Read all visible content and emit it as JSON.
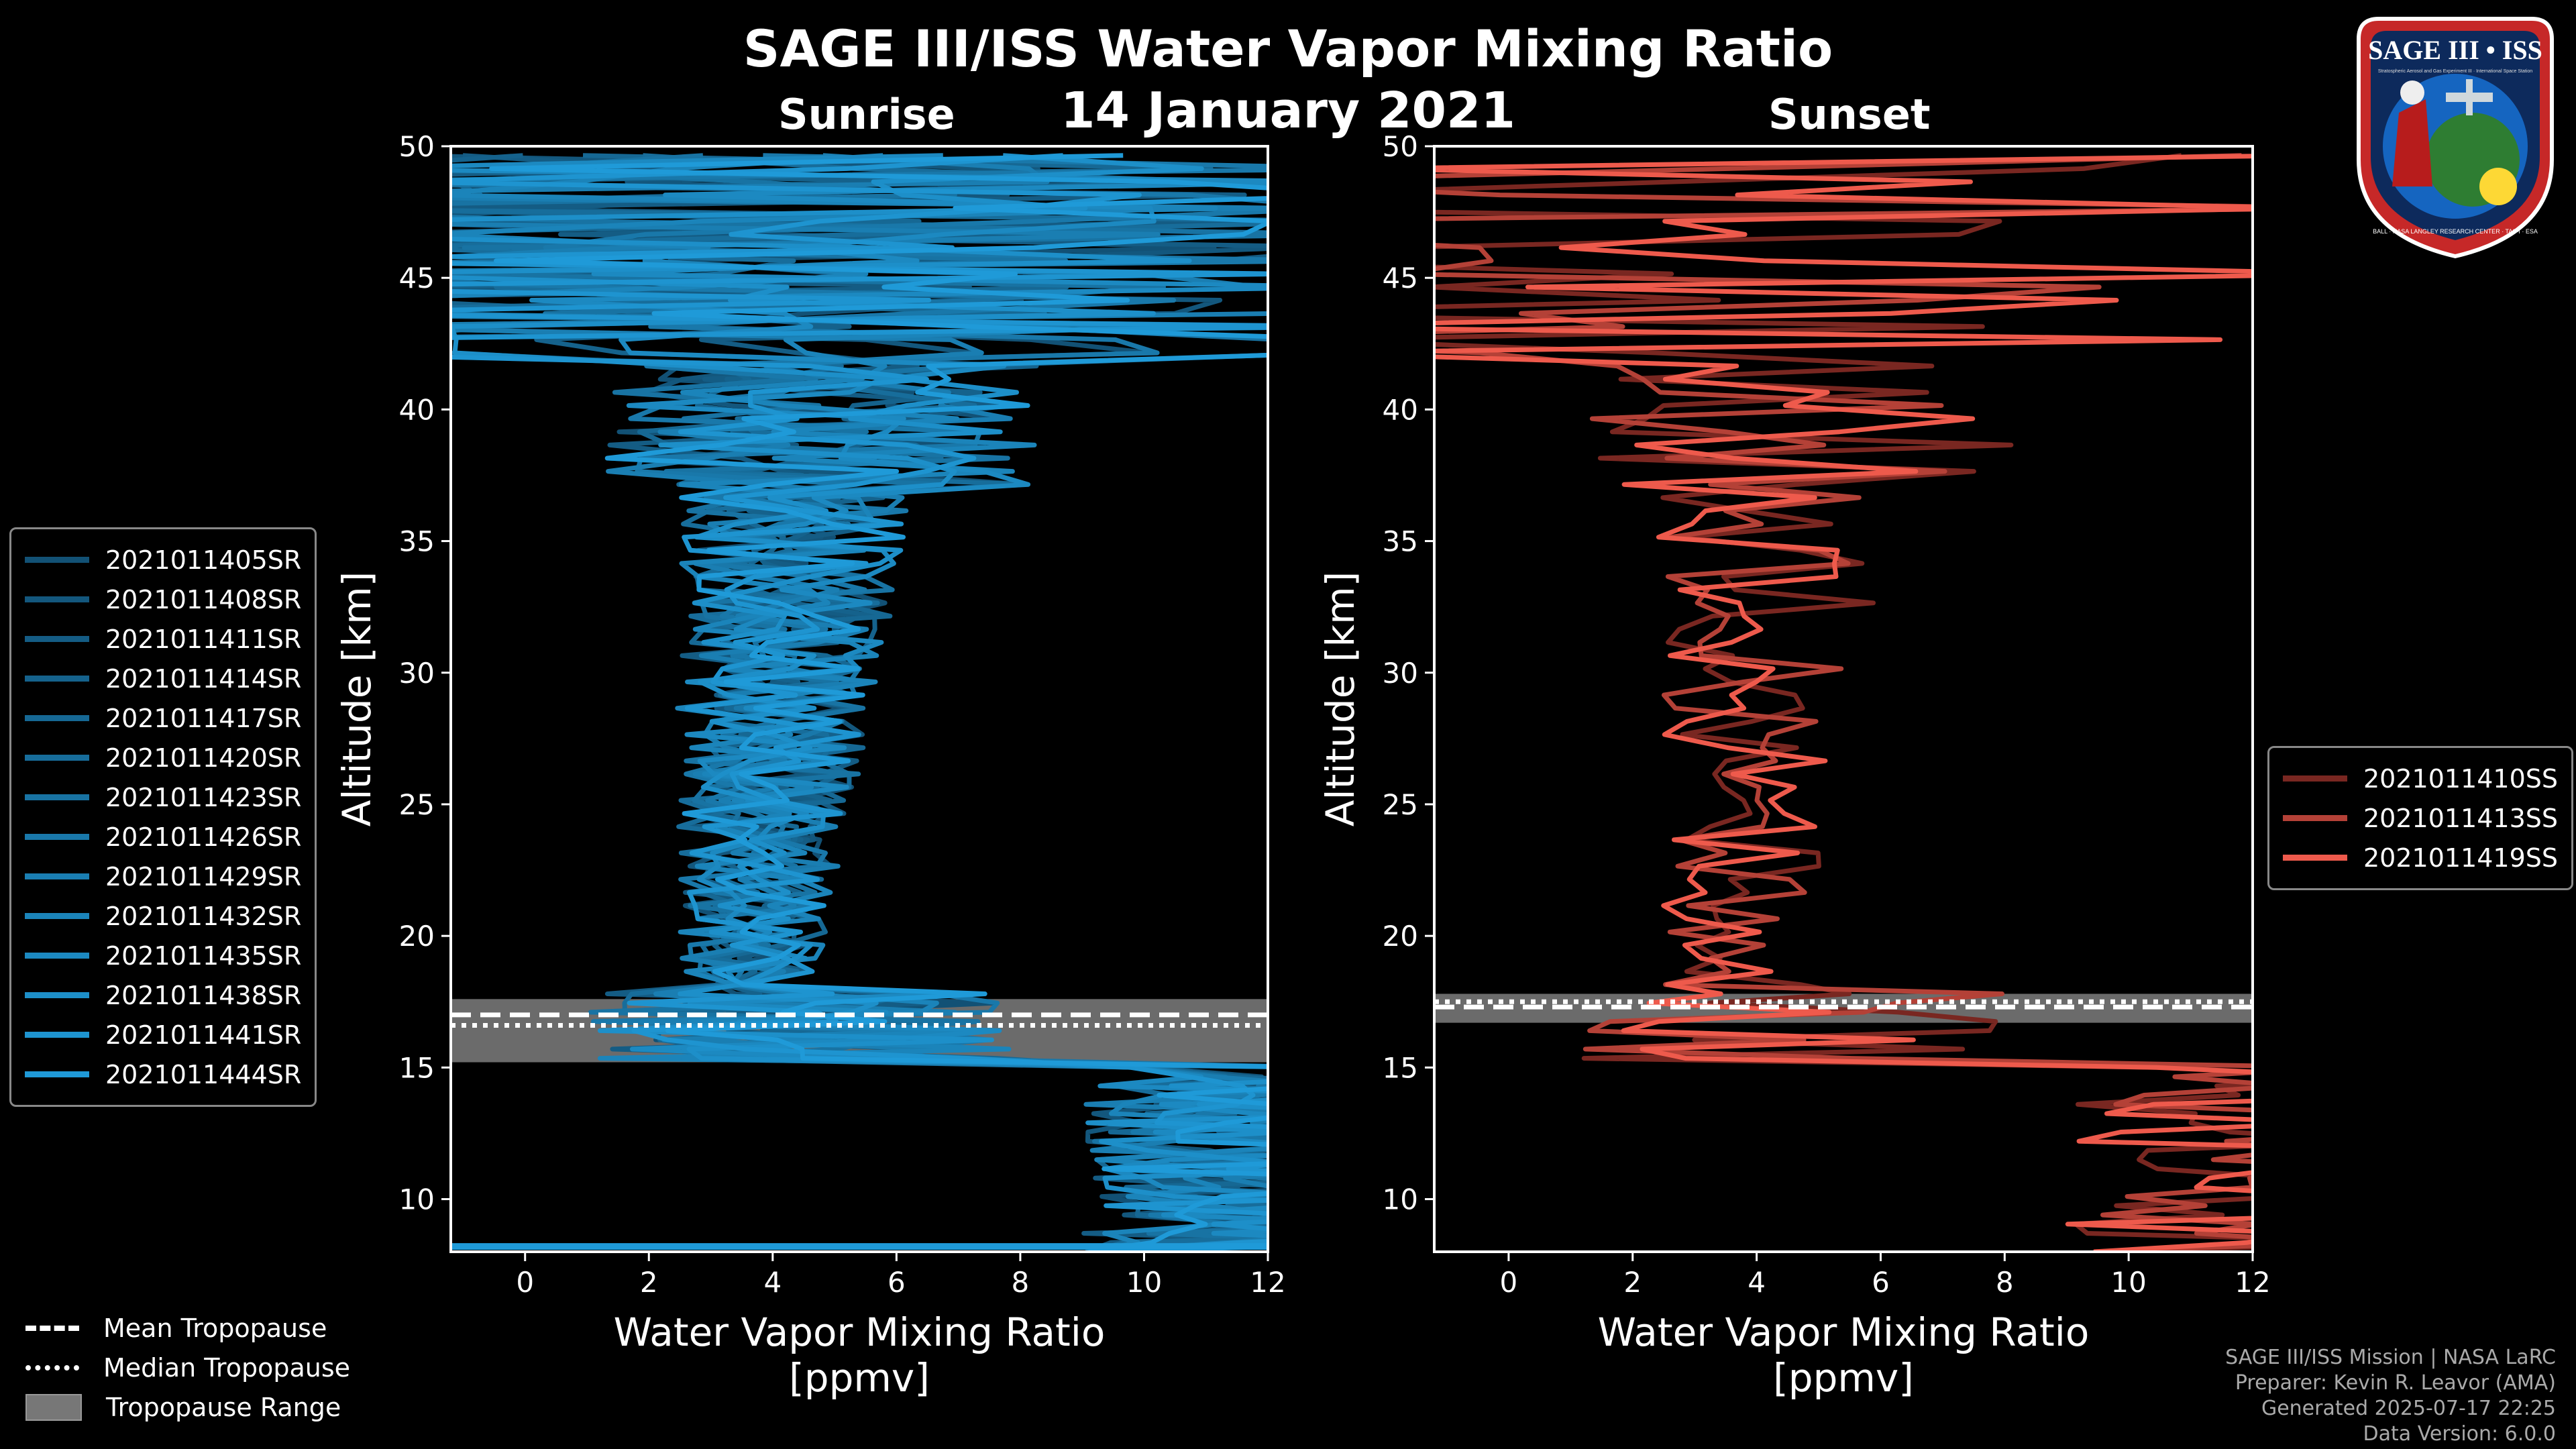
{
  "title": "SAGE III/ISS Water Vapor Mixing Ratio",
  "date": "14 January 2021",
  "colors": {
    "sunrise": "#1f9ad8",
    "sunset": "#ee5a4c",
    "mean": "#ffffff",
    "range": "#888888"
  },
  "chart_data": [
    {
      "type": "line",
      "panel_label": "Sunrise",
      "xlabel": "Water Vapor Mixing Ratio\n[ppmv]",
      "ylabel": "Altitude [km]",
      "xlim": [
        -1.2,
        12
      ],
      "ylim": [
        8,
        50
      ],
      "xticks": [
        0,
        2,
        4,
        6,
        8,
        10,
        12
      ],
      "yticks": [
        10,
        15,
        20,
        25,
        30,
        35,
        40,
        45,
        50
      ],
      "tropopause": {
        "mean": 17.0,
        "median": 16.6,
        "range": [
          15.2,
          17.6
        ]
      },
      "series": [
        {
          "name": "2021011405SR"
        },
        {
          "name": "2021011408SR"
        },
        {
          "name": "2021011411SR"
        },
        {
          "name": "2021011414SR"
        },
        {
          "name": "2021011417SR"
        },
        {
          "name": "2021011420SR"
        },
        {
          "name": "2021011423SR"
        },
        {
          "name": "2021011426SR"
        },
        {
          "name": "2021011429SR"
        },
        {
          "name": "2021011432SR"
        },
        {
          "name": "2021011435SR"
        },
        {
          "name": "2021011438SR"
        },
        {
          "name": "2021011441SR"
        },
        {
          "name": "2021011444SR"
        }
      ]
    },
    {
      "type": "line",
      "panel_label": "Sunset",
      "xlabel": "Water Vapor Mixing Ratio\n[ppmv]",
      "ylabel": "Altitude [km]",
      "xlim": [
        -1.2,
        12
      ],
      "ylim": [
        8,
        50
      ],
      "xticks": [
        0,
        2,
        4,
        6,
        8,
        10,
        12
      ],
      "yticks": [
        10,
        15,
        20,
        25,
        30,
        35,
        40,
        45,
        50
      ],
      "tropopause": {
        "mean": 17.3,
        "median": 17.5,
        "range": [
          16.7,
          17.8
        ]
      },
      "series": [
        {
          "name": "2021011410SS"
        },
        {
          "name": "2021011413SS"
        },
        {
          "name": "2021011419SS"
        }
      ]
    }
  ],
  "legend_tropopause": {
    "mean": "Mean Tropopause",
    "median": "Median Tropopause",
    "range": "Tropopause Range"
  },
  "credits": {
    "line1": "SAGE III/ISS Mission | NASA LaRC",
    "line2": "Preparer: Kevin R. Leavor (AMA)",
    "line3": "Generated 2025-07-17 22:25",
    "line4": "Data Version: 6.0.0"
  },
  "logo": {
    "name": "SAGE III • ISS",
    "tagline": "Stratospheric Aerosol and Gas Experiment III · International Space Station",
    "ring": "BALL · NASA LANGLEY RESEARCH CENTER · TAS-I · ESA"
  }
}
